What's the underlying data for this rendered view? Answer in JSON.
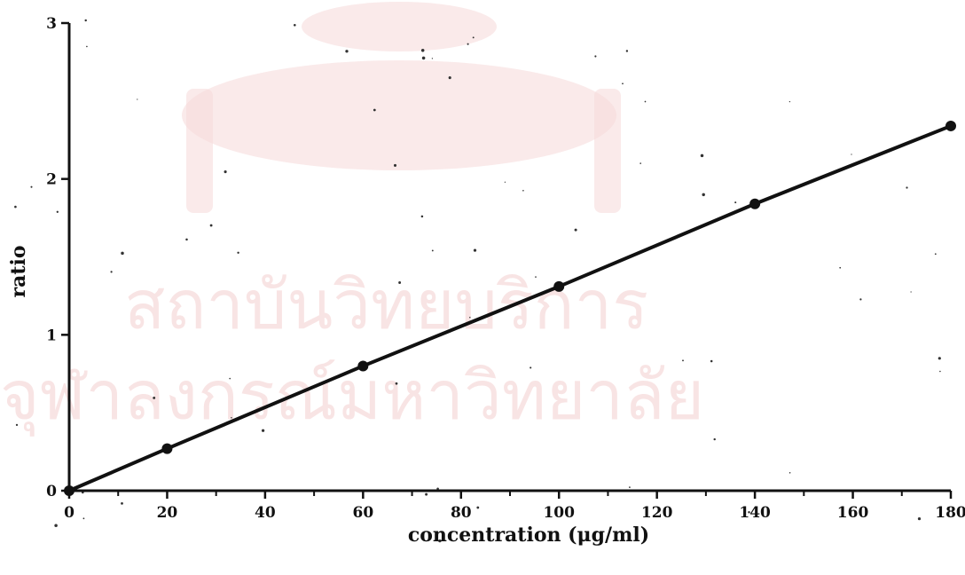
{
  "watermark": {
    "line1": "สถาบันวิทยบริการ",
    "line2": "จุฬาลงกรณ์มหาวิทยาลัย"
  },
  "chart_data": {
    "type": "line",
    "title": "",
    "xlabel": "concentration (μg/ml)",
    "ylabel": "ratio",
    "xlim": [
      0,
      180
    ],
    "ylim": [
      0,
      3
    ],
    "x_ticks": [
      0,
      20,
      40,
      60,
      80,
      100,
      120,
      140,
      160,
      180
    ],
    "y_ticks": [
      0,
      1,
      2,
      3
    ],
    "x_tick_labels": [
      "0",
      "20",
      "40",
      "60",
      "80",
      "100",
      "120",
      "140",
      "160",
      "180"
    ],
    "y_tick_labels": [
      "0",
      "1",
      "2",
      "3"
    ],
    "grid": false,
    "series": [
      {
        "x": [
          0,
          20,
          60,
          100,
          140,
          180
        ],
        "y": [
          0,
          0.27,
          0.8,
          1.31,
          1.84,
          2.34
        ],
        "color": "#111111",
        "marker": "circle"
      }
    ]
  }
}
